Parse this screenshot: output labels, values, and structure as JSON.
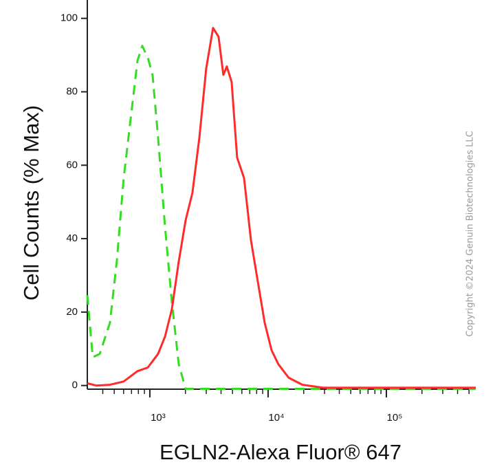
{
  "chart_data": {
    "type": "line",
    "x_label": "EGLN2-Alexa Fluor® 647",
    "y_label": "Cell Counts (% Max)",
    "watermark": "Copyright ©2024 Genuin Biotechnologies LLC",
    "xscale": "log",
    "xlim": [
      296,
      570000
    ],
    "ylim": [
      -1,
      105
    ],
    "xticks": [
      {
        "value": 1000,
        "label": "10³"
      },
      {
        "value": 10000,
        "label": "10⁴"
      },
      {
        "value": 100000,
        "label": "10⁵"
      }
    ],
    "xminorticks": [
      400,
      500,
      600,
      700,
      800,
      900,
      2000,
      3000,
      4000,
      5000,
      6000,
      7000,
      8000,
      9000,
      20000,
      30000,
      40000,
      50000,
      60000,
      70000,
      80000,
      90000,
      200000,
      300000,
      400000,
      500000
    ],
    "yticks": [
      0,
      20,
      40,
      60,
      80,
      100
    ],
    "grid": false,
    "series": [
      {
        "color": "#33dd22",
        "dashed": true,
        "x": [
          296,
          329,
          377,
          460,
          526,
          601,
          687,
          785,
          863,
          961,
          1055,
          1174,
          1344,
          1536,
          1755,
          2006,
          570000
        ],
        "values": [
          24.6,
          7.7,
          8.6,
          17.1,
          34.0,
          56.5,
          72.4,
          88.4,
          92.5,
          89.3,
          84.6,
          67.7,
          43.3,
          22.7,
          5.8,
          -0.9,
          -0.9
        ]
      },
      {
        "color": "#ff2a2a",
        "dashed": false,
        "x": [
          296,
          352,
          460,
          601,
          785,
          961,
          1174,
          1344,
          1536,
          1755,
          2006,
          2293,
          2622,
          2996,
          3425,
          3812,
          4185,
          4476,
          4917,
          5470,
          6263,
          7160,
          8185,
          9356,
          10700,
          12220,
          14930,
          19530,
          29170,
          570000
        ],
        "values": [
          0.6,
          0,
          0.2,
          1.1,
          3.9,
          4.9,
          8.6,
          13.3,
          20.8,
          33.8,
          45.0,
          52.5,
          67.5,
          86.3,
          97.4,
          95.0,
          84.6,
          86.9,
          82.7,
          62.1,
          56.5,
          39.6,
          28.3,
          17.1,
          9.6,
          5.8,
          2.1,
          0.2,
          -0.6,
          -0.6
        ]
      }
    ]
  }
}
